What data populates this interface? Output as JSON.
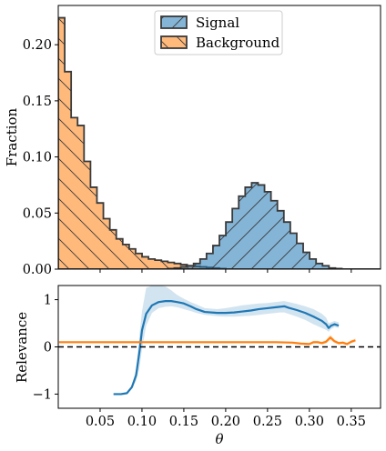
{
  "chart_data": [
    {
      "type": "bar",
      "subtype": "step-histogram",
      "ylabel": "Fraction",
      "xlim": [
        0.0,
        0.385
      ],
      "ylim": [
        0.0,
        0.235
      ],
      "yticks": [
        0.0,
        0.05,
        0.1,
        0.15,
        0.2
      ],
      "ytick_labels": [
        "0.00",
        "0.05",
        "0.10",
        "0.15",
        "0.20"
      ],
      "grid": false,
      "legend_position": "top-center",
      "bin_edges": [
        0.0,
        0.0077,
        0.0154,
        0.0231,
        0.0308,
        0.0385,
        0.0462,
        0.0539,
        0.0616,
        0.0693,
        0.077,
        0.0847,
        0.0924,
        0.1001,
        0.1078,
        0.1155,
        0.1232,
        0.1309,
        0.1386,
        0.1463,
        0.154,
        0.1617,
        0.1694,
        0.1771,
        0.1848,
        0.1925,
        0.2002,
        0.2079,
        0.2156,
        0.2233,
        0.231,
        0.2387,
        0.2464,
        0.2541,
        0.2618,
        0.2695,
        0.2772,
        0.2849,
        0.2926,
        0.3003,
        0.308,
        0.3157,
        0.3234,
        0.3311,
        0.3388,
        0.3465,
        0.3542,
        0.3619,
        0.3696,
        0.3773,
        0.385
      ],
      "series": [
        {
          "name": "Signal",
          "color": "#1f77b4",
          "hatch": "/",
          "values": [
            0,
            0,
            0,
            0,
            0,
            0,
            0,
            0,
            0,
            0,
            0,
            0,
            0,
            0,
            0,
            0,
            0,
            0.0005,
            0.001,
            0.002,
            0.003,
            0.005,
            0.009,
            0.014,
            0.021,
            0.03,
            0.042,
            0.054,
            0.065,
            0.073,
            0.077,
            0.075,
            0.069,
            0.061,
            0.052,
            0.042,
            0.032,
            0.023,
            0.015,
            0.009,
            0.005,
            0.003,
            0.001,
            0.0005,
            0,
            0,
            0,
            0,
            0,
            0
          ]
        },
        {
          "name": "Background",
          "color": "#ff7f0e",
          "hatch": "\\",
          "values": [
            0.224,
            0.176,
            0.135,
            0.128,
            0.096,
            0.073,
            0.059,
            0.045,
            0.035,
            0.027,
            0.022,
            0.018,
            0.014,
            0.011,
            0.009,
            0.008,
            0.007,
            0.006,
            0.005,
            0.004,
            0.003,
            0.0025,
            0.002,
            0.0015,
            0.001,
            0.0005,
            0,
            0,
            0,
            0,
            0,
            0,
            0,
            0,
            0,
            0,
            0,
            0,
            0,
            0,
            0,
            0,
            0,
            0,
            0,
            0,
            0,
            0,
            0,
            0
          ]
        }
      ]
    },
    {
      "type": "line",
      "ylabel": "Relevance",
      "xlabel": "θ",
      "xlim": [
        0.0,
        0.385
      ],
      "ylim": [
        -1.3,
        1.3
      ],
      "xticks": [
        0.05,
        0.1,
        0.15,
        0.2,
        0.25,
        0.3,
        0.35
      ],
      "xtick_labels": [
        "0.05",
        "0.10",
        "0.15",
        "0.20",
        "0.25",
        "0.30",
        "0.35"
      ],
      "yticks": [
        -1,
        0,
        1
      ],
      "ytick_labels": [
        "−1",
        "0",
        "1"
      ],
      "reference_line": {
        "y": 0,
        "style": "dashed",
        "color": "#000000"
      },
      "series": [
        {
          "color": "#1f77b4",
          "band": true,
          "x": [
            0.066,
            0.075,
            0.082,
            0.088,
            0.093,
            0.097,
            0.1,
            0.105,
            0.112,
            0.12,
            0.128,
            0.135,
            0.142,
            0.15,
            0.158,
            0.165,
            0.175,
            0.19,
            0.2,
            0.21,
            0.22,
            0.23,
            0.24,
            0.25,
            0.26,
            0.265,
            0.27,
            0.275,
            0.285,
            0.295,
            0.305,
            0.315,
            0.32,
            0.323,
            0.326,
            0.33,
            0.335
          ],
          "y": [
            -1.0,
            -1.0,
            -0.98,
            -0.85,
            -0.6,
            -0.1,
            0.35,
            0.7,
            0.88,
            0.95,
            0.97,
            0.97,
            0.95,
            0.92,
            0.86,
            0.8,
            0.74,
            0.72,
            0.72,
            0.73,
            0.75,
            0.77,
            0.8,
            0.82,
            0.84,
            0.85,
            0.86,
            0.83,
            0.78,
            0.72,
            0.64,
            0.55,
            0.48,
            0.4,
            0.45,
            0.48,
            0.45
          ],
          "lower": [
            -1.0,
            -1.0,
            -0.98,
            -0.88,
            -0.72,
            -0.45,
            -0.05,
            0.45,
            0.72,
            0.82,
            0.85,
            0.86,
            0.84,
            0.8,
            0.76,
            0.72,
            0.68,
            0.65,
            0.64,
            0.64,
            0.65,
            0.66,
            0.68,
            0.7,
            0.72,
            0.73,
            0.73,
            0.7,
            0.64,
            0.57,
            0.48,
            0.4,
            0.36,
            0.32,
            0.38,
            0.42,
            0.4
          ],
          "upper": [
            -1.0,
            -1.0,
            -0.98,
            -0.82,
            -0.48,
            0.25,
            0.75,
            1.25,
            1.3,
            1.3,
            1.28,
            1.2,
            1.1,
            1.02,
            0.95,
            0.9,
            0.82,
            0.8,
            0.82,
            0.85,
            0.88,
            0.9,
            0.92,
            0.93,
            0.95,
            0.96,
            0.97,
            0.95,
            0.91,
            0.86,
            0.8,
            0.7,
            0.62,
            0.5,
            0.52,
            0.55,
            0.52
          ]
        },
        {
          "color": "#ff7f0e",
          "band": true,
          "x": [
            0.001,
            0.02,
            0.04,
            0.06,
            0.08,
            0.1,
            0.12,
            0.14,
            0.16,
            0.18,
            0.2,
            0.22,
            0.24,
            0.26,
            0.28,
            0.29,
            0.3,
            0.305,
            0.31,
            0.315,
            0.32,
            0.325,
            0.33,
            0.335,
            0.34,
            0.345,
            0.35,
            0.355
          ],
          "y": [
            0.1,
            0.1,
            0.1,
            0.1,
            0.1,
            0.1,
            0.1,
            0.1,
            0.1,
            0.1,
            0.1,
            0.1,
            0.1,
            0.1,
            0.09,
            0.07,
            0.06,
            0.1,
            0.1,
            0.08,
            0.11,
            0.2,
            0.12,
            0.08,
            0.09,
            0.06,
            0.11,
            0.14
          ],
          "lower": [
            0.09,
            0.09,
            0.09,
            0.09,
            0.09,
            0.09,
            0.09,
            0.09,
            0.09,
            0.09,
            0.09,
            0.09,
            0.09,
            0.09,
            0.07,
            0.05,
            0.04,
            0.07,
            0.07,
            0.05,
            0.07,
            0.14,
            0.08,
            0.05,
            0.06,
            0.03,
            0.08,
            0.1
          ],
          "upper": [
            0.11,
            0.11,
            0.11,
            0.11,
            0.11,
            0.11,
            0.11,
            0.11,
            0.11,
            0.11,
            0.11,
            0.11,
            0.11,
            0.11,
            0.11,
            0.09,
            0.08,
            0.13,
            0.13,
            0.11,
            0.15,
            0.26,
            0.16,
            0.11,
            0.12,
            0.09,
            0.14,
            0.18
          ]
        }
      ]
    }
  ]
}
